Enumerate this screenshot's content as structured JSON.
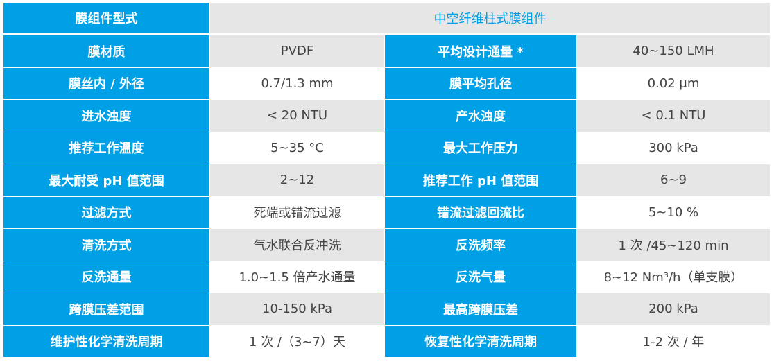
{
  "header": {
    "label": "膜组件型式",
    "value": "中空纤维柱式膜组件"
  },
  "rows": [
    [
      "膜材质",
      "PVDF",
      "平均设计通量 *",
      "40~150 LMH"
    ],
    [
      "膜丝内 / 外径",
      "0.7/1.3 mm",
      "膜平均孔径",
      "0.02 μm"
    ],
    [
      "进水浊度",
      "< 20 NTU",
      "产水浊度",
      "< 0.1 NTU"
    ],
    [
      "推荐工作温度",
      "5~35 °C",
      "最大工作压力",
      "300 kPa"
    ],
    [
      "最大耐受 pH 值范围",
      "2~12",
      "推荐工作 pH 值范围",
      "6~9"
    ],
    [
      "过滤方式",
      "死端或错流过滤",
      "错流过滤回流比",
      "5~10 %"
    ],
    [
      "清洗方式",
      "气水联合反冲洗",
      "反洗频率",
      "1 次 /45~120 min"
    ],
    [
      "反洗通量",
      "1.0~1.5 倍产水通量",
      "反洗气量",
      "8~12 Nm³/h（单支膜）"
    ],
    [
      "跨膜压差范围",
      "10-150 kPa",
      "最高跨膜压差",
      "200 kPa"
    ],
    [
      "维护性化学清洗周期",
      "1 次 /（3~7）天",
      "恢复性化学清洗周期",
      "1-2 次 / 年"
    ]
  ],
  "colors": {
    "key_bg": "#00a0e6",
    "stripe": "#e6e6e6"
  }
}
